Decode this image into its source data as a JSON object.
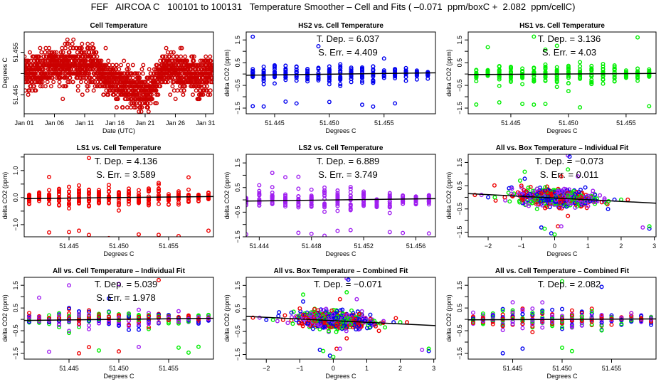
{
  "title": "FEF   AIRCOA C   100101 to 100131   Temperature Smoother – Cell and Fits ( –0.071  ppm/boxC +  2.082  ppm/cellC)",
  "colors": {
    "HS2": "#0000ee",
    "HS1": "#00ee00",
    "LS1": "#ee0000",
    "LS2": "#a020f0",
    "cell": "#cc0000",
    "fit": "#000000"
  },
  "chart_data": [
    {
      "id": "cell-temperature",
      "type": "scatter",
      "title": "Cell Temperature",
      "xlabel": "Date (UTC)",
      "ylabel": "Degrees C",
      "xticks": [
        "Jan 01",
        "Jan 06",
        "Jan 11",
        "Jan 16",
        "Jan 21",
        "Jan 26",
        "Jan 31"
      ],
      "xlim": [
        0,
        31.3
      ],
      "xtick_values": [
        0,
        5,
        10,
        15,
        20,
        25,
        30
      ],
      "yticks": [
        "51.445",
        "51.455"
      ],
      "ytick_values": [
        51.445,
        51.455
      ],
      "ylim": [
        51.4405,
        51.4598
      ],
      "series": [
        {
          "name": "Cell",
          "color": "cell",
          "profile": [
            [
              0.0,
              51.451
            ],
            [
              1.0,
              51.45
            ],
            [
              2.0,
              51.451
            ],
            [
              3.0,
              51.45
            ],
            [
              4.0,
              51.452
            ],
            [
              5.0,
              51.452
            ],
            [
              6.0,
              51.452
            ],
            [
              7.0,
              51.452
            ],
            [
              8.0,
              51.452
            ],
            [
              9.0,
              51.452
            ],
            [
              10.0,
              51.452
            ],
            [
              11.0,
              51.452
            ],
            [
              12.0,
              51.451
            ],
            [
              13.0,
              51.45
            ],
            [
              14.0,
              51.448
            ],
            [
              15.0,
              51.448
            ],
            [
              16.0,
              51.447
            ],
            [
              17.0,
              51.448
            ],
            [
              18.0,
              51.447
            ],
            [
              19.0,
              51.446
            ],
            [
              20.0,
              51.445
            ],
            [
              21.0,
              51.446
            ],
            [
              22.0,
              51.448
            ],
            [
              23.0,
              51.451
            ],
            [
              24.0,
              51.452
            ],
            [
              25.0,
              51.45
            ],
            [
              26.0,
              51.451
            ],
            [
              27.0,
              51.45
            ],
            [
              28.0,
              51.449
            ],
            [
              29.0,
              51.448
            ],
            [
              30.0,
              51.45
            ],
            [
              31.0,
              51.45
            ]
          ]
        }
      ]
    },
    {
      "id": "hs2-vs-cell",
      "type": "scatter",
      "title": "HS2 vs. Cell Temperature",
      "xlabel": "Degrees C",
      "ylabel": "delta CO2 (ppm)",
      "annotations": [
        "T. Dep. =  6.037",
        "S. Err. = 4.409"
      ],
      "xticks": [
        "51.445",
        "51.450",
        "51.455"
      ],
      "xtick_values": [
        51.445,
        51.45,
        51.455
      ],
      "xlim": [
        51.4424,
        51.4597
      ],
      "yticks": [
        "−1.5",
        "−0.5",
        "0.5",
        "1.5"
      ],
      "ytick_values": [
        -1.5,
        -0.5,
        0.5,
        1.5
      ],
      "ylim": [
        -1.75,
        1.85
      ],
      "series": [
        {
          "name": "HS2",
          "color": "HS2"
        }
      ],
      "fit_slope": 6.037
    },
    {
      "id": "hs1-vs-cell",
      "type": "scatter",
      "title": "HS1 vs. Cell Temperature",
      "xlabel": "Degrees C",
      "ylabel": "delta CO2 (ppm)",
      "annotations": [
        "T. Dep. = 3.136",
        "S. Err. = 4.03"
      ],
      "xticks": [
        "51.445",
        "51.450",
        "51.455"
      ],
      "xtick_values": [
        51.445,
        51.45,
        51.455
      ],
      "xlim": [
        51.4413,
        51.4576
      ],
      "yticks": [
        "−1.5",
        "−0.5",
        "0.5",
        "1.5"
      ],
      "ytick_values": [
        -1.5,
        -0.5,
        0.5,
        1.5
      ],
      "ylim": [
        -1.75,
        1.85
      ],
      "series": [
        {
          "name": "HS1",
          "color": "HS1"
        }
      ],
      "fit_slope": 3.136
    },
    {
      "id": "ls1-vs-cell",
      "type": "scatter",
      "title": "LS1 vs. Cell Temperature",
      "xlabel": "Degrees C",
      "ylabel": "delta CO2 (ppm)",
      "annotations": [
        "T. Dep. =  4.136",
        "S. Err. = 3.589"
      ],
      "xticks": [
        "51.445",
        "51.450",
        "51.455"
      ],
      "xtick_values": [
        51.445,
        51.45,
        51.455
      ],
      "xlim": [
        51.4405,
        51.4595
      ],
      "yticks": [
        "−1.0",
        "0.0",
        "1.0"
      ],
      "ytick_values": [
        -1.0,
        0.0,
        1.0
      ],
      "ylim": [
        -1.45,
        1.6
      ],
      "series": [
        {
          "name": "LS1",
          "color": "LS1"
        }
      ],
      "fit_slope": 4.136
    },
    {
      "id": "ls2-vs-cell",
      "type": "scatter",
      "title": "LS2 vs. Cell Temperature",
      "xlabel": "Degrees C",
      "ylabel": "delta CO2 (ppm)",
      "annotations": [
        "T. Dep. =  6.889",
        "S. Err. = 3.749"
      ],
      "xticks": [
        "51.444",
        "51.448",
        "51.452",
        "51.456"
      ],
      "xtick_values": [
        51.444,
        51.448,
        51.452,
        51.456
      ],
      "xlim": [
        51.443,
        51.4575
      ],
      "yticks": [
        "−1.5",
        "−0.5",
        "0.5",
        "1.5"
      ],
      "ytick_values": [
        -1.5,
        -0.5,
        0.5,
        1.5
      ],
      "ylim": [
        -1.5,
        1.85
      ],
      "series": [
        {
          "name": "LS2",
          "color": "LS2"
        }
      ],
      "fit_slope": 6.889
    },
    {
      "id": "all-vs-box-individual",
      "type": "scatter",
      "title": "All vs. Box Temperature – Individual Fit",
      "xlabel": "Degrees C",
      "ylabel": "delta CO2 (ppm)",
      "annotations": [
        "T. Dep. = −0.073",
        "S. Err. =  0.011"
      ],
      "xticks": [
        "−2",
        "−1",
        "0",
        "1",
        "2",
        "3"
      ],
      "xtick_values": [
        -2,
        -1,
        0,
        1,
        2,
        3
      ],
      "xlim": [
        -2.6,
        3.05
      ],
      "yticks": [
        "−1.5",
        "−0.5",
        "0.5",
        "1.5"
      ],
      "ytick_values": [
        -1.5,
        -0.5,
        0.5,
        1.5
      ],
      "ylim": [
        -1.7,
        1.85
      ],
      "series": [
        {
          "name": "HS2",
          "color": "HS2"
        },
        {
          "name": "HS1",
          "color": "HS1"
        },
        {
          "name": "LS1",
          "color": "LS1"
        },
        {
          "name": "LS2",
          "color": "LS2"
        }
      ],
      "fit_slope": -0.073
    },
    {
      "id": "all-vs-cell-individual",
      "type": "scatter",
      "title": "All vs. Cell Temperature – Individual Fit",
      "xlabel": "Degrees C",
      "ylabel": "delta CO2 (ppm)",
      "annotations": [
        "T. Dep. = 5.039",
        "S. Err. = 1.978"
      ],
      "xticks": [
        "51.445",
        "51.450",
        "51.455"
      ],
      "xtick_values": [
        51.445,
        51.45,
        51.455
      ],
      "xlim": [
        51.4405,
        51.4595
      ],
      "yticks": [
        "−1.5",
        "−0.5",
        "0.5",
        "1.5"
      ],
      "ytick_values": [
        -1.5,
        -0.5,
        0.5,
        1.5
      ],
      "ylim": [
        -1.75,
        1.85
      ],
      "series": [
        {
          "name": "HS2",
          "color": "HS2"
        },
        {
          "name": "HS1",
          "color": "HS1"
        },
        {
          "name": "LS1",
          "color": "LS1"
        },
        {
          "name": "LS2",
          "color": "LS2"
        }
      ],
      "fit_slope": 5.039
    },
    {
      "id": "all-vs-box-combined",
      "type": "scatter",
      "title": "All vs. Box Temperature – Combined Fit",
      "xlabel": "Degrees C",
      "ylabel": "delta CO2 (ppm)",
      "annotations": [
        "T. Dep. = −0.071"
      ],
      "xticks": [
        "−2",
        "−1",
        "0",
        "1",
        "2",
        "3"
      ],
      "xtick_values": [
        -2,
        -1,
        0,
        1,
        2,
        3
      ],
      "xlim": [
        -2.6,
        3.05
      ],
      "yticks": [
        "−1.5",
        "−0.5",
        "0.5",
        "1.5"
      ],
      "ytick_values": [
        -1.5,
        -0.5,
        0.5,
        1.5
      ],
      "ylim": [
        -1.7,
        1.85
      ],
      "series": [
        {
          "name": "HS2",
          "color": "HS2"
        },
        {
          "name": "HS1",
          "color": "HS1"
        },
        {
          "name": "LS1",
          "color": "LS1"
        },
        {
          "name": "LS2",
          "color": "LS2"
        }
      ],
      "fit_slope": -0.071
    },
    {
      "id": "all-vs-cell-combined",
      "type": "scatter",
      "title": "All vs. Cell Temperature – Combined Fit",
      "xlabel": "Degrees C",
      "ylabel": "delta CO2 (ppm)",
      "annotations": [
        "T. Dep. =  2.082"
      ],
      "xticks": [
        "51.445",
        "51.450",
        "51.455"
      ],
      "xtick_values": [
        51.445,
        51.45,
        51.455
      ],
      "xlim": [
        51.4405,
        51.4595
      ],
      "yticks": [
        "−1.5",
        "−0.5",
        "0.5",
        "1.5"
      ],
      "ytick_values": [
        -1.5,
        -0.5,
        0.5,
        1.5
      ],
      "ylim": [
        -1.75,
        1.85
      ],
      "series": [
        {
          "name": "HS2",
          "color": "HS2"
        },
        {
          "name": "HS1",
          "color": "HS1"
        },
        {
          "name": "LS1",
          "color": "LS1"
        },
        {
          "name": "LS2",
          "color": "LS2"
        }
      ],
      "fit_slope": 2.082
    }
  ]
}
